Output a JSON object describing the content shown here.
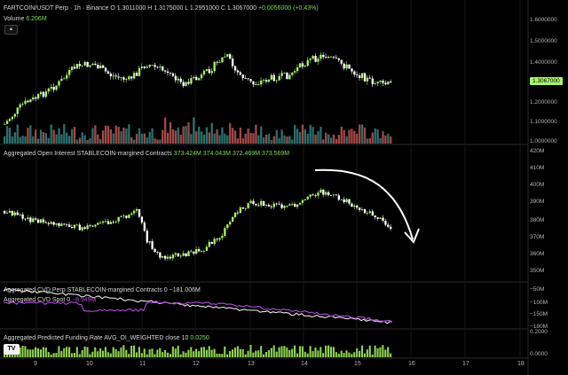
{
  "header": {
    "symbol": "FARTCOIN/USDT Perp · 1h · Binance",
    "ohlc": "O 1.3011000  H 1.3175000  L 1.2951000  C 1.3067000",
    "change": "+0.0056000 (+0.43%)",
    "volume_label": "Volume",
    "volume_value": "6.206M"
  },
  "price_axis": [
    "1.6000000",
    "1.5000000",
    "1.4000000",
    "1.2000000",
    "1.1000000",
    "1.0000000"
  ],
  "current_price": "1.3067000",
  "oi_panel": {
    "label": "Aggregated Open Interest STABLECOIN-margined Contracts",
    "values": "373.424M  374.043M  372.469M  373.569M",
    "axis": [
      "420M",
      "410M",
      "400M",
      "390M",
      "380M",
      "370M",
      "360M",
      "350M"
    ]
  },
  "cvd_panel": {
    "label_1": "Aggregated CVD Perp STABLECOIN-margined Contracts 0",
    "value_1": "−181.006M",
    "label_2": "Aggregated CVD Spot 0",
    "value_2": "−8.949M",
    "axis": [
      "−50M",
      "−100M",
      "−150M",
      "−180M"
    ],
    "colors": {
      "perp": "#e6e6e6",
      "spot": "#b04ad8"
    }
  },
  "funding_panel": {
    "label": "Aggregated Predicted Funding Rate AVG_OI_WEIGHTED close 10",
    "value": "0.0250",
    "axis": [
      "0.2000",
      "0.0000"
    ]
  },
  "time_axis": [
    "9",
    "10",
    "11",
    "12",
    "13",
    "14",
    "15",
    "16",
    "17",
    "18"
  ],
  "colors": {
    "up": "#a7f36b",
    "down": "#ffffff",
    "vol_up": "#2c6e6a",
    "vol_down": "#a04848",
    "grid": "#161616"
  },
  "logo_text": "TV",
  "collapse_icon": "chevron-up-icon"
}
